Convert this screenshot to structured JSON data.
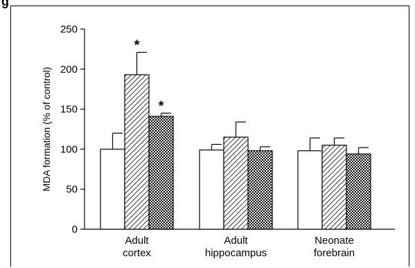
{
  "figure": {
    "label": "g"
  },
  "chart_data": {
    "type": "bar",
    "categories": [
      [
        "Adult",
        "cortex"
      ],
      [
        "Adult",
        "hippocampus"
      ],
      [
        "Neonate",
        "forebrain"
      ]
    ],
    "series": [
      {
        "fill": "white",
        "values": [
          100,
          99,
          98
        ],
        "errors": [
          20,
          7,
          16
        ]
      },
      {
        "fill": "hatched",
        "values": [
          193,
          115,
          105
        ],
        "errors": [
          28,
          19,
          9
        ]
      },
      {
        "fill": "crosshatched",
        "values": [
          141,
          98,
          94
        ],
        "errors": [
          4,
          5,
          8
        ]
      }
    ],
    "significance": [
      [
        null,
        null,
        null
      ],
      [
        "*",
        null,
        null
      ],
      [
        "*",
        null,
        null
      ]
    ],
    "ylabel": "MDA formation (% of control)",
    "xlabel": "",
    "ylim": [
      0,
      250
    ],
    "yticks": [
      0,
      50,
      100,
      150,
      200,
      250
    ],
    "colors": {
      "axis": "#000000",
      "bar_stroke": "#000000",
      "bar_white": "#ffffff"
    },
    "legend": "none",
    "grid": false
  }
}
